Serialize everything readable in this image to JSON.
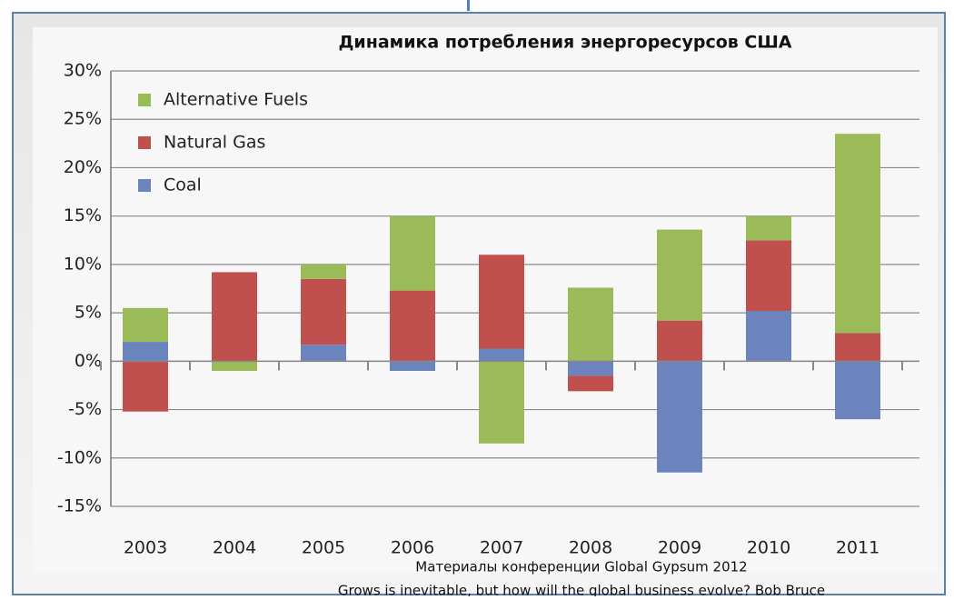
{
  "chart_data": {
    "type": "stacked_bar",
    "title": "Динамика потребления энергоресурсов США",
    "categories": [
      "2003",
      "2004",
      "2005",
      "2006",
      "2007",
      "2008",
      "2009",
      "2010",
      "2011"
    ],
    "series": [
      {
        "name": "Coal",
        "color": "#6b84bd",
        "values": [
          2,
          0,
          1.7,
          -1,
          1.3,
          -1.5,
          -11.5,
          5.2,
          -6
        ]
      },
      {
        "name": "Natural Gas",
        "color": "#c0504d",
        "values": [
          -5.2,
          9.2,
          6.8,
          7.3,
          9.7,
          -1.6,
          4.2,
          7.3,
          2.9
        ]
      },
      {
        "name": "Alternative Fuels",
        "color": "#9bbb59",
        "values": [
          3.5,
          -1,
          1.5,
          7.7,
          -8.5,
          7.6,
          9.4,
          2.5,
          20.6
        ]
      }
    ],
    "ylim": [
      -15,
      30
    ],
    "yticks": [
      {
        "value": -15,
        "label": "-15%"
      },
      {
        "value": -10,
        "label": "-10%"
      },
      {
        "value": -5,
        "label": "-5%"
      },
      {
        "value": 0,
        "label": "0%"
      },
      {
        "value": 5,
        "label": "5%"
      },
      {
        "value": 10,
        "label": "10%"
      },
      {
        "value": 15,
        "label": "15%"
      },
      {
        "value": 20,
        "label": "20%"
      },
      {
        "value": 25,
        "label": "25%"
      },
      {
        "value": 30,
        "label": "30%"
      }
    ],
    "grid": true,
    "legend": "top-left",
    "source": [
      "Материалы конференции Global Gypsum 2012",
      "Grows is inevitable, but how will the global business evolve? Bob Bruce"
    ]
  }
}
